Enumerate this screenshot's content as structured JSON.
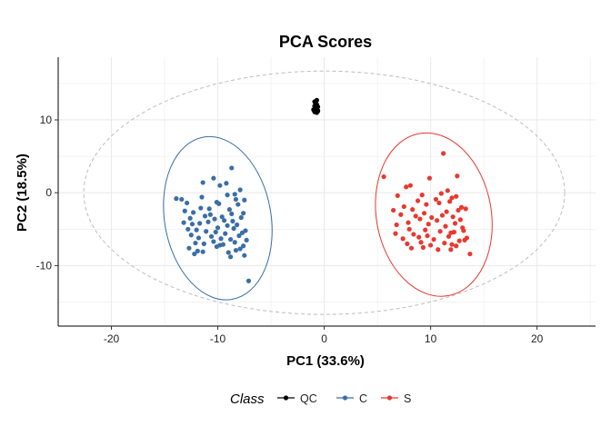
{
  "chart_data": {
    "type": "scatter",
    "title": "PCA Scores",
    "xlabel": "PC1 (33.6%)",
    "ylabel": "PC2 (18.5%)",
    "xlim": [
      -25,
      25.5
    ],
    "ylim": [
      -18.3,
      18.6
    ],
    "xticks": [
      -20,
      -10,
      0,
      10,
      20
    ],
    "yticks": [
      -10,
      0,
      10
    ],
    "xtick_labels": [
      "-20",
      "-10",
      "0",
      "10",
      "20"
    ],
    "ytick_labels": [
      "-10",
      "0",
      "10"
    ],
    "grid": true,
    "legend": {
      "title": "Class",
      "position": "bottom",
      "entries": [
        "QC",
        "C",
        "S"
      ]
    },
    "colors": {
      "QC": "#000000",
      "C": "#3a6ea5",
      "S": "#e8392f",
      "grid": "#ebebeb",
      "hotelling": "#bdbdbd"
    },
    "hotelling_ellipse": {
      "center": [
        0,
        0
      ],
      "rx": 22.6,
      "ry": 16.7
    },
    "series": [
      {
        "name": "QC",
        "ellipse": null,
        "x": [
          -0.9,
          -0.8,
          -0.7,
          -0.9,
          -0.6,
          -0.8,
          -0.7,
          -1.0,
          -0.8,
          -0.6,
          -0.9,
          -0.7,
          -0.8,
          -0.7,
          -0.9,
          -0.6,
          -0.8,
          -0.7
        ],
        "y": [
          12.5,
          12.3,
          12.1,
          11.9,
          11.8,
          11.7,
          11.5,
          11.4,
          11.3,
          11.2,
          11.1,
          11.0,
          11.6,
          12.0,
          11.5,
          11.3,
          12.2,
          12.7
        ]
      },
      {
        "name": "C",
        "ellipse": {
          "center": [
            -10,
            -3.5
          ],
          "rx": 5.0,
          "ry": 11.3,
          "rotation_deg": -10
        },
        "x": [
          -8.7,
          -10.4,
          -11.4,
          -9.8,
          -9.2,
          -7.9,
          -8.4,
          -13.9,
          -13.4,
          -12.9,
          -11.5,
          -10.1,
          -9.1,
          -8.3,
          -7.5,
          -10.8,
          -9.9,
          -8.9,
          -8.1,
          -13.1,
          -12.3,
          -11.6,
          -10.7,
          -9.6,
          -8.7,
          -7.6,
          -12.6,
          -11.2,
          -10.3,
          -9.4,
          -8.6,
          -7.8,
          -13.2,
          -12.4,
          -11.7,
          -10.9,
          -10.0,
          -9.1,
          -8.2,
          -7.4,
          -12.8,
          -12.0,
          -11.1,
          -10.2,
          -9.3,
          -8.5,
          -7.7,
          -12.5,
          -11.8,
          -10.6,
          -9.7,
          -8.8,
          -8.0,
          -7.3,
          -12.1,
          -11.3,
          -10.4,
          -9.5,
          -8.4,
          -7.6,
          -12.7,
          -11.9,
          -10.1,
          -9.0,
          -8.3,
          -7.5,
          -12.2,
          -11.4,
          -9.8,
          -8.8,
          -7.9,
          -7.1
        ],
        "y": [
          3.4,
          2.0,
          1.4,
          1.0,
          1.3,
          0.4,
          -0.2,
          -0.8,
          -0.9,
          -1.4,
          -0.6,
          -1.3,
          -0.3,
          -0.9,
          -1.0,
          -2.2,
          -1.5,
          -2.3,
          -1.6,
          -2.5,
          -2.7,
          -2.1,
          -3.0,
          -3.3,
          -2.9,
          -2.8,
          -3.5,
          -3.2,
          -3.6,
          -3.8,
          -3.9,
          -3.4,
          -4.1,
          -4.3,
          -4.2,
          -4.0,
          -4.8,
          -4.5,
          -4.4,
          -5.2,
          -5.0,
          -5.1,
          -5.3,
          -5.4,
          -5.6,
          -4.9,
          -5.5,
          -5.8,
          -6.2,
          -6.0,
          -6.3,
          -6.4,
          -5.9,
          -6.5,
          -6.9,
          -7.0,
          -6.7,
          -7.1,
          -6.8,
          -7.3,
          -7.6,
          -8.0,
          -7.4,
          -8.2,
          -7.9,
          -8.6,
          -8.4,
          -8.1,
          -7.2,
          -8.8,
          -7.7,
          -12.1
        ]
      },
      {
        "name": "S",
        "ellipse": {
          "center": [
            10.3,
            -3.0
          ],
          "rx": 5.4,
          "ry": 11.3,
          "rotation_deg": -10
        },
        "x": [
          11.2,
          5.6,
          9.9,
          12.5,
          8.1,
          7.7,
          11.6,
          11.0,
          6.9,
          9.2,
          12.0,
          8.8,
          10.5,
          11.8,
          12.4,
          7.5,
          9.6,
          10.8,
          12.9,
          6.5,
          8.3,
          9.4,
          11.5,
          12.6,
          13.3,
          7.2,
          8.6,
          10.1,
          11.1,
          12.1,
          9.0,
          10.6,
          12.8,
          6.8,
          7.9,
          9.8,
          11.4,
          12.3,
          13.0,
          8.0,
          9.5,
          10.9,
          12.2,
          6.7,
          8.4,
          9.7,
          11.9,
          13.1,
          7.4,
          8.9,
          10.3,
          11.7,
          12.7,
          7.8,
          9.1,
          10.0,
          11.3,
          12.4,
          13.2,
          8.2,
          9.3,
          10.7,
          12.0,
          13.4,
          11.9,
          13.7
        ],
        "y": [
          5.4,
          2.2,
          2.0,
          2.3,
          1.0,
          0.8,
          0.3,
          -0.1,
          -0.4,
          -0.3,
          -0.7,
          -1.1,
          -0.9,
          -1.2,
          -0.5,
          -1.9,
          -1.6,
          -1.4,
          -2.0,
          -2.4,
          -2.3,
          -2.8,
          -2.6,
          -2.4,
          -2.2,
          -3.0,
          -3.2,
          -3.4,
          -3.1,
          -3.3,
          -3.6,
          -3.8,
          -3.7,
          -4.4,
          -4.1,
          -4.3,
          -4.6,
          -4.2,
          -4.8,
          -5.0,
          -5.1,
          -5.3,
          -5.4,
          -5.6,
          -5.7,
          -5.9,
          -5.5,
          -5.2,
          -6.3,
          -6.1,
          -6.4,
          -6.0,
          -6.6,
          -7.0,
          -6.8,
          -7.2,
          -6.9,
          -7.3,
          -6.5,
          -7.6,
          -7.5,
          -7.8,
          -7.1,
          -6.2,
          -7.8,
          -8.4
        ]
      }
    ]
  }
}
